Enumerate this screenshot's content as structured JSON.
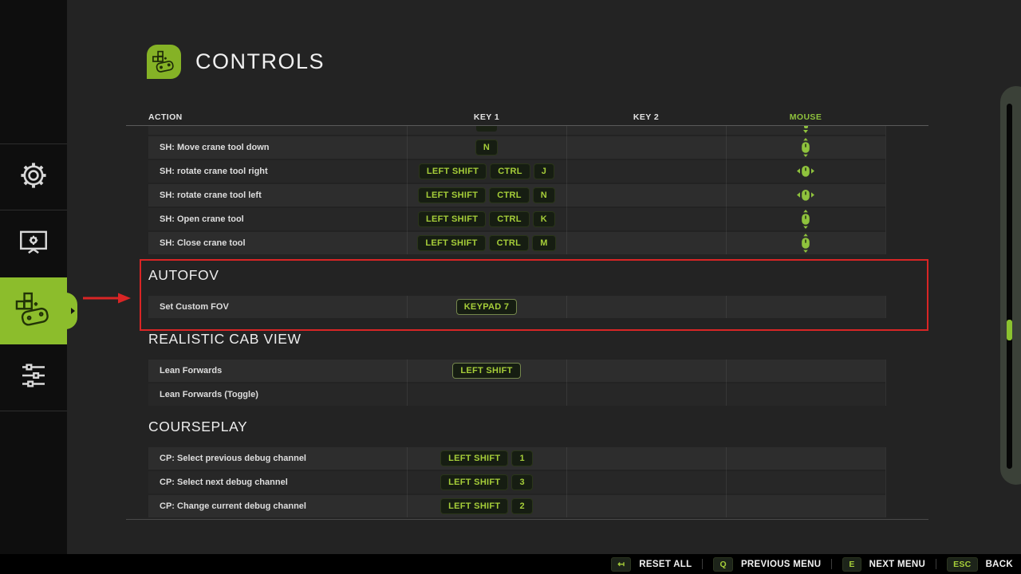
{
  "colors": {
    "accent_green": "#8fc23d",
    "tab_green": "#8cbd2c",
    "key_text": "#a6ce39",
    "logo_green": "#85b226",
    "highlight_red": "#d92525"
  },
  "page": {
    "title": "CONTROLS",
    "title_icon": "gamepad-bubble-icon"
  },
  "sidebar": {
    "items": [
      {
        "id": "game-settings",
        "icon": "gear-icon",
        "active": false
      },
      {
        "id": "display-settings",
        "icon": "display-settings-icon",
        "active": false
      },
      {
        "id": "controls",
        "icon": "gamepad-icon",
        "active": true
      },
      {
        "id": "advanced-settings",
        "icon": "sliders-icon",
        "active": false
      }
    ]
  },
  "table": {
    "headers": {
      "action": "ACTION",
      "key1": "KEY 1",
      "key2": "KEY 2",
      "mouse": "MOUSE"
    },
    "sections": [
      {
        "title": null,
        "partial_row_top": true,
        "rows": [
          {
            "action": "SH: Move crane tool down",
            "key1": [
              "N"
            ],
            "key2": [],
            "mouse": "mouse-scroll-vertical-icon"
          },
          {
            "action": "SH: rotate crane tool right",
            "key1": [
              "LEFT SHIFT",
              "CTRL",
              "J"
            ],
            "key2": [],
            "mouse": "mouse-scroll-horizontal-icon"
          },
          {
            "action": "SH: rotate crane tool left",
            "key1": [
              "LEFT SHIFT",
              "CTRL",
              "N"
            ],
            "key2": [],
            "mouse": "mouse-scroll-horizontal-icon"
          },
          {
            "action": "SH: Open crane tool",
            "key1": [
              "LEFT SHIFT",
              "CTRL",
              "K"
            ],
            "key2": [],
            "mouse": "mouse-scroll-vertical-icon"
          },
          {
            "action": "SH: Close crane tool",
            "key1": [
              "LEFT SHIFT",
              "CTRL",
              "M"
            ],
            "key2": [],
            "mouse": "mouse-scroll-vertical-icon"
          }
        ]
      },
      {
        "title": "AUTOFOV",
        "highlighted": true,
        "rows": [
          {
            "action": "Set Custom FOV",
            "key1": [
              "KEYPAD 7"
            ],
            "key2": [],
            "mouse": null,
            "outlined": true
          }
        ]
      },
      {
        "title": "REALISTIC CAB VIEW",
        "rows": [
          {
            "action": "Lean Forwards",
            "key1": [
              "LEFT SHIFT"
            ],
            "key2": [],
            "mouse": null,
            "outlined": true
          },
          {
            "action": "Lean Forwards (Toggle)",
            "key1": [],
            "key2": [],
            "mouse": null
          }
        ]
      },
      {
        "title": "COURSEPLAY",
        "rows": [
          {
            "action": "CP: Select previous debug channel",
            "key1": [
              "LEFT SHIFT",
              "1"
            ],
            "key2": [],
            "mouse": null
          },
          {
            "action": "CP: Select next debug channel",
            "key1": [
              "LEFT SHIFT",
              "3"
            ],
            "key2": [],
            "mouse": null
          },
          {
            "action": "CP: Change current debug channel",
            "key1": [
              "LEFT SHIFT",
              "2"
            ],
            "key2": [],
            "mouse": null
          }
        ]
      }
    ]
  },
  "scrollbar": {
    "thumb_position_percent": 62
  },
  "footer": {
    "items": [
      {
        "key": "↤",
        "label": "RESET ALL"
      },
      {
        "key": "Q",
        "label": "PREVIOUS MENU"
      },
      {
        "key": "E",
        "label": "NEXT MENU"
      },
      {
        "key": "ESC",
        "label": "BACK"
      }
    ]
  }
}
